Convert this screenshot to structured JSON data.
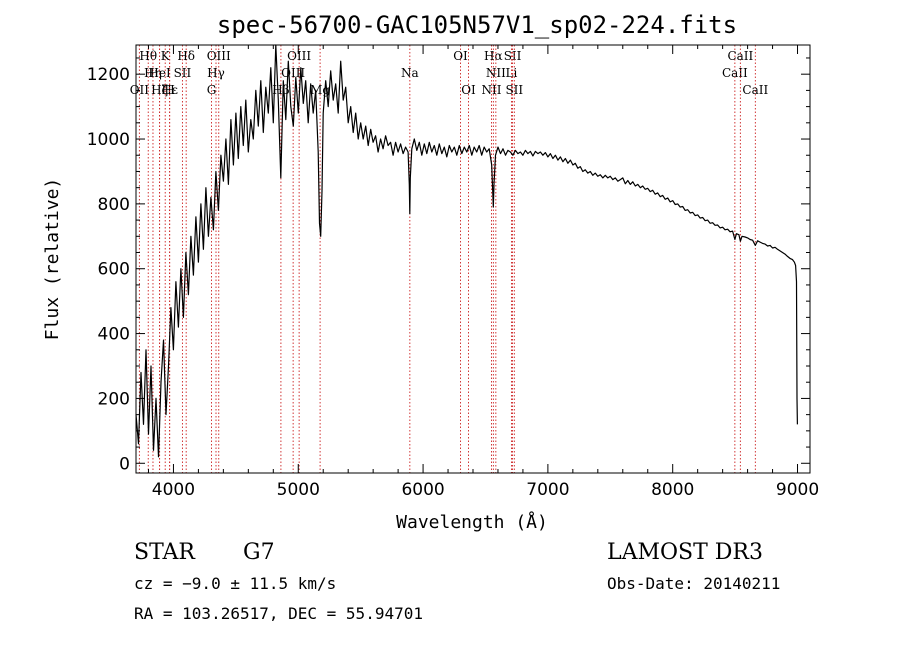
{
  "chart_data": {
    "type": "line",
    "title": "spec-56700-GAC105N57V1_sp02-224.fits",
    "xlabel": "Wavelength (Å)",
    "ylabel": "Flux (relative)",
    "xlim": [
      3700,
      9100
    ],
    "ylim": [
      -30,
      1290
    ],
    "xticks": [
      4000,
      5000,
      6000,
      7000,
      8000,
      9000
    ],
    "yticks": [
      0,
      200,
      400,
      600,
      800,
      1000,
      1200
    ],
    "grid": false,
    "line_color": "#cc2222",
    "spectrum_color": "#000000",
    "lines": [
      {
        "name": "Hθ",
        "wl": 3798,
        "row": 0
      },
      {
        "name": "OII",
        "wl": 3727,
        "row": 2
      },
      {
        "name": "Hη",
        "wl": 3836,
        "row": 1
      },
      {
        "name": "HeI",
        "wl": 3889,
        "row": 1
      },
      {
        "name": "Hζ",
        "wl": 3889,
        "row": 2
      },
      {
        "name": "K",
        "wl": 3934,
        "row": 0
      },
      {
        "name": "Hε",
        "wl": 3970,
        "row": 2
      },
      {
        "name": "H",
        "wl": 3969,
        "row": 2
      },
      {
        "name": "SII",
        "wl": 4072,
        "row": 1
      },
      {
        "name": "Hδ",
        "wl": 4102,
        "row": 0
      },
      {
        "name": "G",
        "wl": 4305,
        "row": 2
      },
      {
        "name": "Hγ",
        "wl": 4341,
        "row": 1
      },
      {
        "name": "OIII",
        "wl": 4363,
        "row": 0
      },
      {
        "name": "Hβ",
        "wl": 4861,
        "row": 2
      },
      {
        "name": "OIII",
        "wl": 4959,
        "row": 1
      },
      {
        "name": "OIII",
        "wl": 5007,
        "row": 0
      },
      {
        "name": "Mg",
        "wl": 5175,
        "row": 2
      },
      {
        "name": "Na",
        "wl": 5894,
        "row": 1
      },
      {
        "name": "OI",
        "wl": 6300,
        "row": 0
      },
      {
        "name": "OI",
        "wl": 6364,
        "row": 2
      },
      {
        "name": "NII",
        "wl": 6548,
        "row": 2
      },
      {
        "name": "Hα",
        "wl": 6563,
        "row": 0
      },
      {
        "name": "NII",
        "wl": 6583,
        "row": 1
      },
      {
        "name": "Li",
        "wl": 6708,
        "row": 1
      },
      {
        "name": "SII",
        "wl": 6717,
        "row": 0
      },
      {
        "name": "SII",
        "wl": 6731,
        "row": 2
      },
      {
        "name": "CaII",
        "wl": 8498,
        "row": 1
      },
      {
        "name": "CaII",
        "wl": 8542,
        "row": 0
      },
      {
        "name": "CaII",
        "wl": 8662,
        "row": 2
      }
    ],
    "spectrum": [
      [
        3700,
        150
      ],
      [
        3720,
        60
      ],
      [
        3740,
        280
      ],
      [
        3760,
        120
      ],
      [
        3780,
        350
      ],
      [
        3800,
        90
      ],
      [
        3820,
        300
      ],
      [
        3840,
        40
      ],
      [
        3860,
        200
      ],
      [
        3880,
        20
      ],
      [
        3900,
        250
      ],
      [
        3920,
        380
      ],
      [
        3940,
        150
      ],
      [
        3960,
        300
      ],
      [
        3980,
        480
      ],
      [
        4000,
        350
      ],
      [
        4020,
        560
      ],
      [
        4040,
        420
      ],
      [
        4060,
        600
      ],
      [
        4080,
        450
      ],
      [
        4100,
        650
      ],
      [
        4120,
        520
      ],
      [
        4140,
        700
      ],
      [
        4160,
        580
      ],
      [
        4180,
        760
      ],
      [
        4200,
        620
      ],
      [
        4220,
        800
      ],
      [
        4240,
        660
      ],
      [
        4260,
        850
      ],
      [
        4280,
        700
      ],
      [
        4300,
        820
      ],
      [
        4320,
        720
      ],
      [
        4340,
        900
      ],
      [
        4360,
        780
      ],
      [
        4380,
        950
      ],
      [
        4400,
        870
      ],
      [
        4420,
        1000
      ],
      [
        4440,
        860
      ],
      [
        4460,
        1060
      ],
      [
        4480,
        920
      ],
      [
        4500,
        1080
      ],
      [
        4520,
        940
      ],
      [
        4540,
        1100
      ],
      [
        4560,
        980
      ],
      [
        4580,
        1120
      ],
      [
        4600,
        960
      ],
      [
        4620,
        1060
      ],
      [
        4640,
        1000
      ],
      [
        4660,
        1150
      ],
      [
        4680,
        1040
      ],
      [
        4700,
        1180
      ],
      [
        4720,
        1020
      ],
      [
        4740,
        1160
      ],
      [
        4760,
        1080
      ],
      [
        4780,
        1220
      ],
      [
        4800,
        1050
      ],
      [
        4820,
        1290
      ],
      [
        4840,
        1120
      ],
      [
        4860,
        880
      ],
      [
        4880,
        1180
      ],
      [
        4900,
        1060
      ],
      [
        4920,
        1240
      ],
      [
        4940,
        1100
      ],
      [
        4960,
        1040
      ],
      [
        4980,
        1190
      ],
      [
        5000,
        1080
      ],
      [
        5020,
        1220
      ],
      [
        5040,
        1110
      ],
      [
        5060,
        1180
      ],
      [
        5080,
        1050
      ],
      [
        5100,
        1170
      ],
      [
        5120,
        1080
      ],
      [
        5140,
        1150
      ],
      [
        5160,
        960
      ],
      [
        5170,
        740
      ],
      [
        5180,
        700
      ],
      [
        5190,
        840
      ],
      [
        5200,
        1080
      ],
      [
        5220,
        1180
      ],
      [
        5240,
        1100
      ],
      [
        5260,
        1210
      ],
      [
        5280,
        1120
      ],
      [
        5300,
        1170
      ],
      [
        5320,
        1080
      ],
      [
        5340,
        1240
      ],
      [
        5360,
        1120
      ],
      [
        5380,
        1160
      ],
      [
        5400,
        1050
      ],
      [
        5420,
        1100
      ],
      [
        5440,
        1020
      ],
      [
        5460,
        1080
      ],
      [
        5480,
        1000
      ],
      [
        5500,
        1050
      ],
      [
        5520,
        1000
      ],
      [
        5540,
        1040
      ],
      [
        5560,
        980
      ],
      [
        5580,
        1030
      ],
      [
        5600,
        990
      ],
      [
        5620,
        1010
      ],
      [
        5640,
        960
      ],
      [
        5660,
        1000
      ],
      [
        5680,
        970
      ],
      [
        5700,
        1010
      ],
      [
        5720,
        980
      ],
      [
        5740,
        990
      ],
      [
        5760,
        950
      ],
      [
        5780,
        990
      ],
      [
        5800,
        960
      ],
      [
        5820,
        985
      ],
      [
        5840,
        955
      ],
      [
        5860,
        975
      ],
      [
        5880,
        960
      ],
      [
        5890,
        860
      ],
      [
        5894,
        770
      ],
      [
        5898,
        880
      ],
      [
        5910,
        970
      ],
      [
        5930,
        1000
      ],
      [
        5950,
        965
      ],
      [
        5970,
        990
      ],
      [
        5990,
        950
      ],
      [
        6010,
        985
      ],
      [
        6030,
        955
      ],
      [
        6050,
        990
      ],
      [
        6070,
        960
      ],
      [
        6090,
        980
      ],
      [
        6110,
        950
      ],
      [
        6130,
        985
      ],
      [
        6150,
        955
      ],
      [
        6170,
        975
      ],
      [
        6190,
        945
      ],
      [
        6210,
        980
      ],
      [
        6230,
        960
      ],
      [
        6250,
        975
      ],
      [
        6270,
        950
      ],
      [
        6290,
        980
      ],
      [
        6310,
        955
      ],
      [
        6330,
        975
      ],
      [
        6350,
        960
      ],
      [
        6370,
        980
      ],
      [
        6390,
        950
      ],
      [
        6410,
        975
      ],
      [
        6430,
        960
      ],
      [
        6450,
        980
      ],
      [
        6470,
        950
      ],
      [
        6490,
        975
      ],
      [
        6510,
        960
      ],
      [
        6530,
        970
      ],
      [
        6550,
        920
      ],
      [
        6558,
        840
      ],
      [
        6563,
        790
      ],
      [
        6568,
        860
      ],
      [
        6580,
        950
      ],
      [
        6600,
        975
      ],
      [
        6620,
        955
      ],
      [
        6640,
        970
      ],
      [
        6660,
        950
      ],
      [
        6680,
        965
      ],
      [
        6700,
        960
      ],
      [
        6720,
        950
      ],
      [
        6740,
        965
      ],
      [
        6760,
        955
      ],
      [
        6780,
        960
      ],
      [
        6800,
        950
      ],
      [
        6820,
        965
      ],
      [
        6840,
        955
      ],
      [
        6860,
        962
      ],
      [
        6880,
        948
      ],
      [
        6900,
        962
      ],
      [
        6920,
        955
      ],
      [
        6940,
        960
      ],
      [
        6960,
        950
      ],
      [
        6980,
        958
      ],
      [
        7000,
        945
      ],
      [
        7020,
        955
      ],
      [
        7040,
        940
      ],
      [
        7060,
        950
      ],
      [
        7080,
        935
      ],
      [
        7100,
        945
      ],
      [
        7120,
        930
      ],
      [
        7140,
        940
      ],
      [
        7160,
        925
      ],
      [
        7180,
        935
      ],
      [
        7200,
        920
      ],
      [
        7220,
        925
      ],
      [
        7240,
        910
      ],
      [
        7260,
        915
      ],
      [
        7280,
        900
      ],
      [
        7300,
        905
      ],
      [
        7320,
        895
      ],
      [
        7340,
        900
      ],
      [
        7360,
        888
      ],
      [
        7380,
        895
      ],
      [
        7400,
        885
      ],
      [
        7420,
        890
      ],
      [
        7440,
        880
      ],
      [
        7460,
        888
      ],
      [
        7480,
        880
      ],
      [
        7500,
        885
      ],
      [
        7520,
        875
      ],
      [
        7540,
        880
      ],
      [
        7560,
        870
      ],
      [
        7580,
        875
      ],
      [
        7600,
        880
      ],
      [
        7620,
        862
      ],
      [
        7640,
        872
      ],
      [
        7660,
        860
      ],
      [
        7680,
        868
      ],
      [
        7700,
        855
      ],
      [
        7720,
        860
      ],
      [
        7740,
        850
      ],
      [
        7760,
        855
      ],
      [
        7780,
        845
      ],
      [
        7800,
        848
      ],
      [
        7820,
        838
      ],
      [
        7840,
        842
      ],
      [
        7860,
        830
      ],
      [
        7880,
        834
      ],
      [
        7900,
        822
      ],
      [
        7920,
        826
      ],
      [
        7940,
        814
      ],
      [
        7960,
        818
      ],
      [
        7980,
        806
      ],
      [
        8000,
        810
      ],
      [
        8020,
        798
      ],
      [
        8040,
        800
      ],
      [
        8060,
        790
      ],
      [
        8080,
        792
      ],
      [
        8100,
        780
      ],
      [
        8120,
        782
      ],
      [
        8140,
        772
      ],
      [
        8160,
        774
      ],
      [
        8180,
        764
      ],
      [
        8200,
        766
      ],
      [
        8220,
        756
      ],
      [
        8240,
        758
      ],
      [
        8260,
        748
      ],
      [
        8280,
        750
      ],
      [
        8300,
        740
      ],
      [
        8320,
        742
      ],
      [
        8340,
        734
      ],
      [
        8360,
        735
      ],
      [
        8380,
        726
      ],
      [
        8400,
        728
      ],
      [
        8420,
        720
      ],
      [
        8440,
        722
      ],
      [
        8460,
        714
      ],
      [
        8480,
        716
      ],
      [
        8498,
        690
      ],
      [
        8510,
        708
      ],
      [
        8530,
        705
      ],
      [
        8542,
        685
      ],
      [
        8555,
        700
      ],
      [
        8580,
        698
      ],
      [
        8600,
        695
      ],
      [
        8620,
        690
      ],
      [
        8640,
        688
      ],
      [
        8662,
        672
      ],
      [
        8680,
        686
      ],
      [
        8700,
        682
      ],
      [
        8720,
        678
      ],
      [
        8740,
        676
      ],
      [
        8760,
        670
      ],
      [
        8780,
        672
      ],
      [
        8800,
        664
      ],
      [
        8820,
        666
      ],
      [
        8840,
        660
      ],
      [
        8860,
        655
      ],
      [
        8880,
        650
      ],
      [
        8900,
        645
      ],
      [
        8920,
        638
      ],
      [
        8940,
        632
      ],
      [
        8960,
        628
      ],
      [
        8975,
        620
      ],
      [
        8985,
        610
      ],
      [
        8992,
        560
      ],
      [
        8996,
        200
      ],
      [
        8999,
        120
      ]
    ]
  },
  "info": {
    "obj_class": "STAR",
    "subclass": "G7",
    "cz": "cz = −9.0 ± 11.5 km/s",
    "radec": "RA = 103.26517, DEC =  55.94701",
    "survey": "LAMOST DR3",
    "obsdate": "Obs-Date: 20140211"
  }
}
